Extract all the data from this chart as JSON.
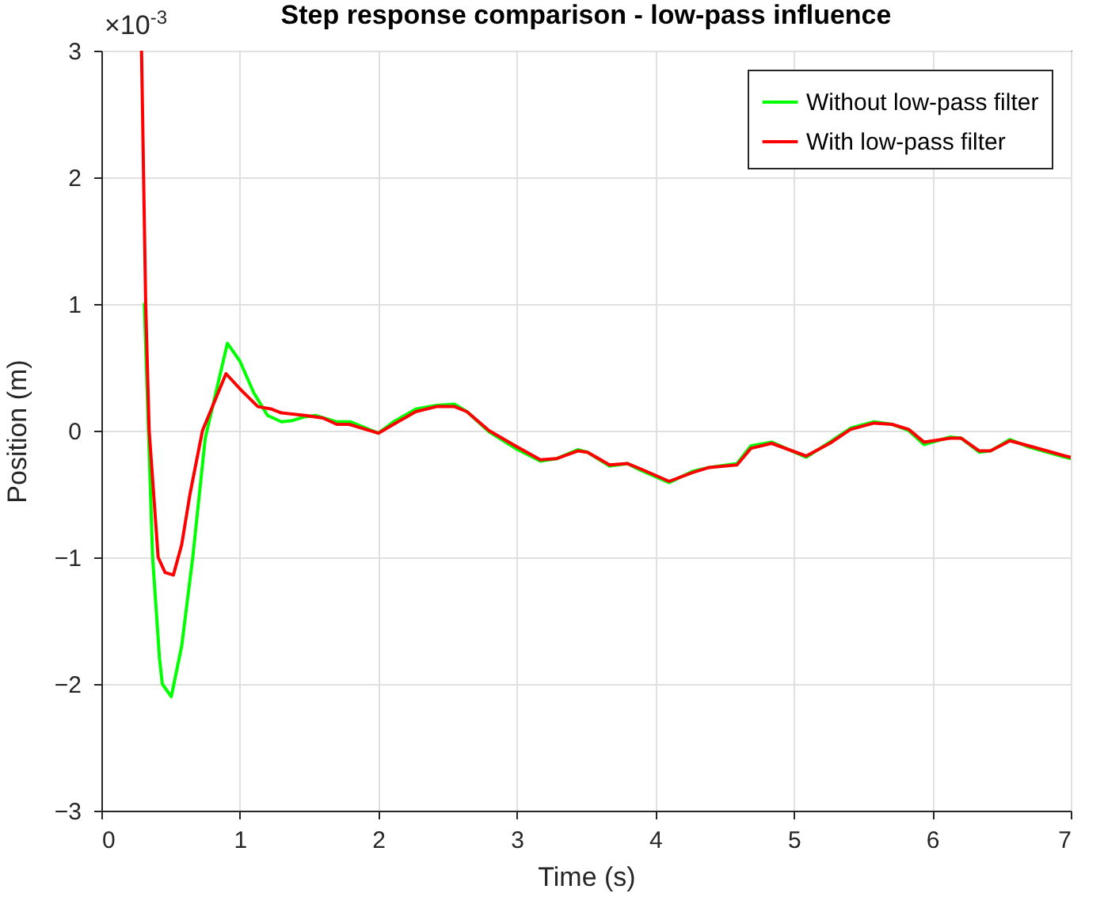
{
  "chart_data": {
    "type": "line",
    "title": "Step response comparison - low-pass influence",
    "xlabel": "Time (s)",
    "ylabel": "Position (m)",
    "annotations": [
      "×10$^{-3}$"
    ],
    "xlim": [
      0,
      7
    ],
    "xticks": [
      0,
      1,
      2,
      3,
      4,
      5,
      6,
      7
    ],
    "ylim": [
      -3,
      3
    ],
    "yticks": [
      -3,
      -2,
      -1,
      0,
      1,
      2,
      3
    ],
    "grid": true,
    "legend": "top right",
    "line_style": "solid",
    "marker": "none",
    "series": [
      {
        "name": "Without low-pass filter",
        "color": "#00ff00",
        "x": [
          0.31,
          0.34,
          0.37,
          0.42,
          0.44,
          0.505,
          0.58,
          0.66,
          0.75,
          0.91,
          1.0,
          1.1,
          1.2,
          1.3,
          1.38,
          1.47,
          1.55,
          1.7,
          1.8,
          2.0,
          2.11,
          2.27,
          2.42,
          2.55,
          2.64,
          2.8,
          2.99,
          3.17,
          3.29,
          3.44,
          3.51,
          3.67,
          3.8,
          3.89,
          4.1,
          4.27,
          4.39,
          4.59,
          4.69,
          4.84,
          5.09,
          5.26,
          5.41,
          5.58,
          5.71,
          5.83,
          5.94,
          6.13,
          6.21,
          6.34,
          6.42,
          6.56,
          6.7,
          6.96,
          7.0
        ],
        "values": [
          1,
          0,
          -1,
          -1.8,
          -2.0,
          -2.1,
          -1.7,
          -1.0,
          -0.06,
          0.69,
          0.55,
          0.3,
          0.12,
          0.07,
          0.08,
          0.11,
          0.12,
          0.07,
          0.07,
          -0.02,
          0.07,
          0.17,
          0.2,
          0.21,
          0.15,
          -0.01,
          -0.14,
          -0.24,
          -0.22,
          -0.15,
          -0.17,
          -0.28,
          -0.26,
          -0.31,
          -0.41,
          -0.32,
          -0.29,
          -0.26,
          -0.12,
          -0.09,
          -0.21,
          -0.09,
          0.02,
          0.07,
          0.05,
          0.0,
          -0.11,
          -0.05,
          -0.06,
          -0.17,
          -0.16,
          -0.07,
          -0.13,
          -0.21,
          -0.22
        ]
      },
      {
        "name": "With low-pass filter",
        "color": "#ff0000",
        "x": [
          0.29,
          0.32,
          0.345,
          0.41,
          0.46,
          0.52,
          0.58,
          0.64,
          0.73,
          0.9,
          1.01,
          1.13,
          1.23,
          1.3,
          1.47,
          1.6,
          1.7,
          1.79,
          2.0,
          2.11,
          2.27,
          2.42,
          2.55,
          2.64,
          2.8,
          2.99,
          3.17,
          3.29,
          3.44,
          3.51,
          3.67,
          3.8,
          3.89,
          4.1,
          4.27,
          4.39,
          4.59,
          4.69,
          4.84,
          5.09,
          5.26,
          5.41,
          5.58,
          5.71,
          5.83,
          5.94,
          6.13,
          6.21,
          6.34,
          6.42,
          6.56,
          6.7,
          6.96,
          7.0
        ],
        "values": [
          3,
          1,
          0,
          -1,
          -1.12,
          -1.14,
          -0.9,
          -0.5,
          0,
          0.45,
          0.32,
          0.19,
          0.17,
          0.14,
          0.12,
          0.1,
          0.05,
          0.05,
          -0.02,
          0.05,
          0.15,
          0.19,
          0.19,
          0.15,
          0.0,
          -0.12,
          -0.23,
          -0.22,
          -0.16,
          -0.17,
          -0.27,
          -0.26,
          -0.3,
          -0.4,
          -0.33,
          -0.29,
          -0.27,
          -0.14,
          -0.1,
          -0.2,
          -0.1,
          0.01,
          0.06,
          0.05,
          0.01,
          -0.09,
          -0.06,
          -0.06,
          -0.16,
          -0.16,
          -0.08,
          -0.12,
          -0.2,
          -0.21
        ]
      }
    ]
  }
}
